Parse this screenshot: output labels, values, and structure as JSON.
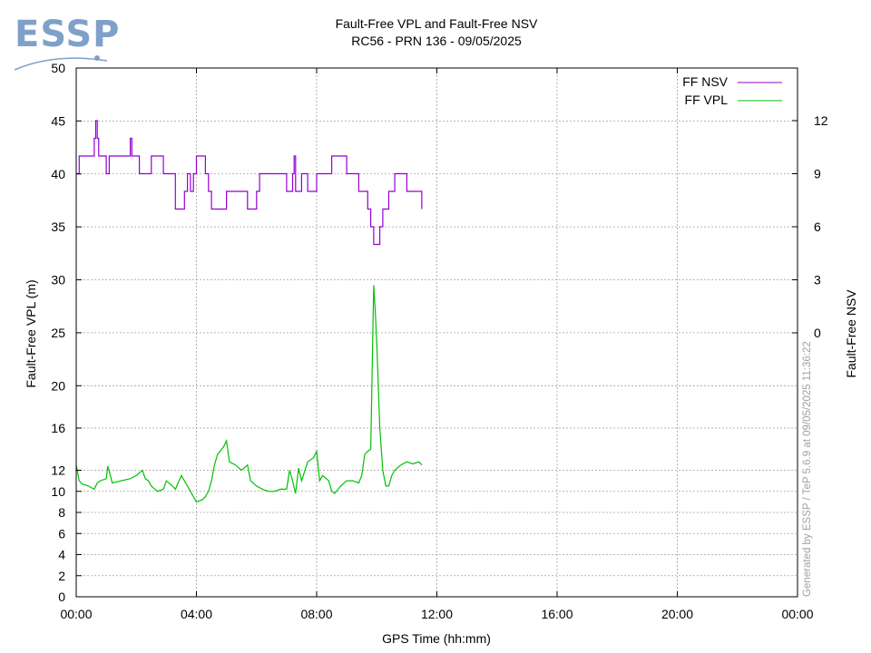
{
  "logo": {
    "text": "ESSP",
    "color": "#7fa0c8"
  },
  "credit": "Generated by ESSP / TeP 5.6.9 at 09/05/2025 11:36:22",
  "chart_data": {
    "type": "line",
    "title": "Fault-Free VPL and Fault-Free NSV",
    "subtitle": "RC56 - PRN 136 - 09/05/2025",
    "xlabel": "GPS Time (hh:mm)",
    "ylabel": "Fault-Free VPL (m)",
    "y2label": "Fault-Free NSV",
    "grid": true,
    "legend_position": "top-right",
    "x_unit": "hours",
    "xlim": [
      0,
      24
    ],
    "x_ticks": [
      0,
      4,
      8,
      12,
      16,
      20,
      24
    ],
    "x_tick_labels": [
      "00:00",
      "04:00",
      "08:00",
      "12:00",
      "16:00",
      "20:00",
      "00:00"
    ],
    "y_scale": "piecewise: 0-16 m bottom half, 16-50 m top half",
    "y_ticks": [
      0,
      2,
      4,
      6,
      8,
      10,
      12,
      16,
      20,
      25,
      30,
      35,
      40,
      45,
      50
    ],
    "y_tick_labels": [
      "0",
      "2",
      "4",
      "6",
      "8",
      "10",
      "12",
      "16",
      "20",
      "25",
      "30",
      "35",
      "40",
      "45",
      "50"
    ],
    "y2_ticks": [
      0,
      3,
      6,
      9,
      12
    ],
    "y2_tick_labels": [
      "0",
      "3",
      "6",
      "9",
      "12"
    ],
    "y2lim": [
      -3,
      14.5
    ],
    "series": [
      {
        "name": "FF NSV",
        "color": "#9400d3",
        "axis": "y2",
        "step": true,
        "x": [
          0,
          0.1,
          0.6,
          0.65,
          0.7,
          0.75,
          1.0,
          1.05,
          1.1,
          1.8,
          1.85,
          1.9,
          2.1,
          2.5,
          2.6,
          2.9,
          3.0,
          3.3,
          3.5,
          3.6,
          3.7,
          3.8,
          3.9,
          4.0,
          4.3,
          4.4,
          4.5,
          5.0,
          5.6,
          5.7,
          6.0,
          6.1,
          7.0,
          7.1,
          7.2,
          7.25,
          7.3,
          7.4,
          7.5,
          7.6,
          7.7,
          8.0,
          8.5,
          8.9,
          9.0,
          9.4,
          9.7,
          9.8,
          9.9,
          10.1,
          10.2,
          10.4,
          10.5,
          10.6,
          11.0,
          11.5
        ],
        "values": [
          9,
          10,
          11,
          12,
          11,
          10,
          9,
          9,
          10,
          11,
          10,
          10,
          9,
          10,
          10,
          9,
          9,
          7,
          7,
          8,
          9,
          8,
          9,
          10,
          9,
          8,
          7,
          8,
          8,
          7,
          8,
          9,
          8,
          8,
          9,
          10,
          8,
          8,
          9,
          9,
          8,
          9,
          10,
          10,
          9,
          8,
          7,
          6,
          5,
          6,
          7,
          8,
          8,
          9,
          8,
          7
        ]
      },
      {
        "name": "FF VPL",
        "color": "#00c000",
        "axis": "y",
        "step": false,
        "x": [
          0,
          0.1,
          0.2,
          0.4,
          0.6,
          0.7,
          0.8,
          1.0,
          1.05,
          1.2,
          1.5,
          1.8,
          2.0,
          2.2,
          2.3,
          2.4,
          2.5,
          2.7,
          2.9,
          3.0,
          3.2,
          3.3,
          3.5,
          3.7,
          3.9,
          4.0,
          4.2,
          4.3,
          4.4,
          4.5,
          4.6,
          4.7,
          4.9,
          5.0,
          5.1,
          5.3,
          5.5,
          5.7,
          5.8,
          6.0,
          6.2,
          6.4,
          6.6,
          6.8,
          7.0,
          7.1,
          7.2,
          7.3,
          7.4,
          7.5,
          7.7,
          7.9,
          8.0,
          8.1,
          8.2,
          8.4,
          8.5,
          8.6,
          8.8,
          9.0,
          9.2,
          9.4,
          9.5,
          9.6,
          9.7,
          9.8,
          9.85,
          9.9,
          9.95,
          10.0,
          10.1,
          10.2,
          10.3,
          10.4,
          10.5,
          10.6,
          10.8,
          11.0,
          11.2,
          11.4,
          11.5
        ],
        "values": [
          12.5,
          11.0,
          10.7,
          10.5,
          10.2,
          10.8,
          11.0,
          11.2,
          12.4,
          10.8,
          11.0,
          11.2,
          11.5,
          12.0,
          11.2,
          11.0,
          10.5,
          10.0,
          10.2,
          11.0,
          10.5,
          10.2,
          11.5,
          10.5,
          9.5,
          9.0,
          9.2,
          9.5,
          10.0,
          11.0,
          12.5,
          13.5,
          14.2,
          14.8,
          12.8,
          12.5,
          12.0,
          12.5,
          11.0,
          10.5,
          10.2,
          10.0,
          10.0,
          10.2,
          10.2,
          12.0,
          11.0,
          9.8,
          12.2,
          11.0,
          12.8,
          13.2,
          13.8,
          11.0,
          11.5,
          11.0,
          10.0,
          9.8,
          10.5,
          11.0,
          11.0,
          10.8,
          11.5,
          13.5,
          13.8,
          14.0,
          22.0,
          29.5,
          27.0,
          24.0,
          16.0,
          12.0,
          10.5,
          10.5,
          11.5,
          12.0,
          12.5,
          12.8,
          12.6,
          12.8,
          12.5
        ]
      }
    ]
  }
}
